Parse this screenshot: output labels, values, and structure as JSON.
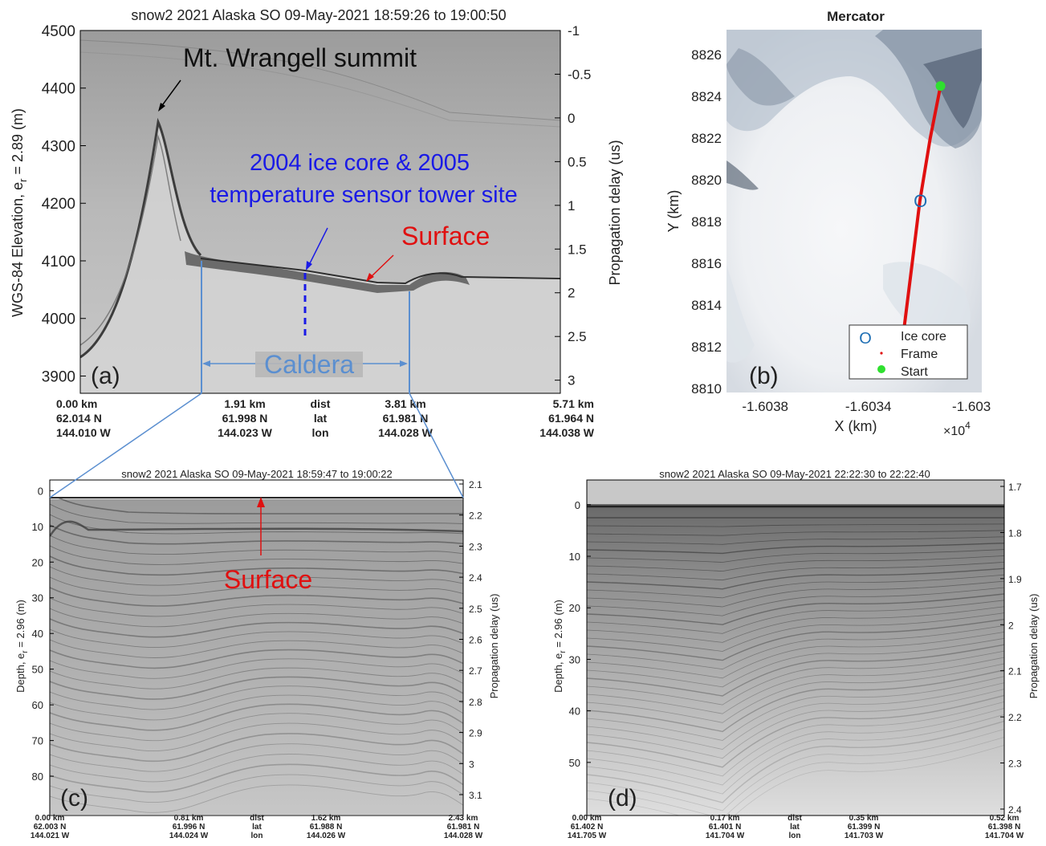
{
  "chart_data": [
    {
      "id": "a",
      "type": "heatmap",
      "title": "snow2 2021 Alaska SO 09-May-2021 18:59:26 to 19:00:50",
      "panel_label": "(a)",
      "ylabel": "WGS-84 Elevation, e_r = 2.89 (m)",
      "ylabel_main": "WGS-84 Elevation, e",
      "ylabel_sub": "r",
      "ylabel_tail": " = 2.89 (m)",
      "y2label": "Propagation delay (us)",
      "ylim": [
        3870,
        4500
      ],
      "yticks": [
        "3900",
        "4000",
        "4100",
        "4200",
        "4300",
        "4400",
        "4500"
      ],
      "y2lim": [
        3.15,
        -1.0
      ],
      "y2ticks": [
        "3",
        "2.5",
        "2",
        "1.5",
        "1",
        "0.5",
        "0",
        "-0.5",
        "-1"
      ],
      "xticks": [
        {
          "dist": "0.00 km",
          "lat": "62.014 N",
          "lon": "144.010 W"
        },
        {
          "dist": "1.91 km",
          "lat": "61.998 N",
          "lon": "144.023 W"
        },
        {
          "dist": "dist",
          "lat": "lat",
          "lon": "lon"
        },
        {
          "dist": "3.81 km",
          "lat": "61.981 N",
          "lon": "144.028 W"
        },
        {
          "dist": "5.71 km",
          "lat": "61.964 N",
          "lon": "144.038 W"
        }
      ],
      "annotations": {
        "summit": "Mt. Wrangell summit",
        "site_line1": "2004 ice core & 2005",
        "site_line2": "temperature sensor tower site",
        "surface": "Surface",
        "caldera": "Caldera"
      }
    },
    {
      "id": "b",
      "type": "scatter",
      "title": "Mercator",
      "panel_label": "(b)",
      "xlabel": "X (km)",
      "ylabel": "Y (km)",
      "x_multiplier": "×10",
      "x_multiplier_exp": "4",
      "xticks": [
        "-1.6038",
        "-1.6034",
        "-1.603"
      ],
      "yticks": [
        "8810",
        "8812",
        "8814",
        "8816",
        "8818",
        "8820",
        "8822",
        "8824",
        "8826"
      ],
      "ylim": [
        8810,
        8827
      ],
      "legend_position": "bottom-right",
      "legend": [
        "Ice core",
        "Frame",
        "Start"
      ],
      "series": [
        {
          "name": "Frame",
          "x": [
            -16032.6,
            -16032.3,
            -16032.0,
            -16031.6,
            -16031.2
          ],
          "y": [
            8813.0,
            8816.0,
            8819.0,
            8822.0,
            8824.5
          ]
        },
        {
          "name": "Ice core",
          "x": [
            -16032.1
          ],
          "y": [
            8819.0
          ]
        },
        {
          "name": "Start",
          "x": [
            -16031.2
          ],
          "y": [
            8824.5
          ]
        }
      ]
    },
    {
      "id": "c",
      "type": "heatmap",
      "title": "snow2 2021 Alaska SO 09-May-2021 18:59:47 to 19:00:22",
      "panel_label": "(c)",
      "ylabel_main": "Depth, e",
      "ylabel_sub": "r",
      "ylabel_tail": " = 2.96 (m)",
      "y2label": "Propagation delay (us)",
      "ylim": [
        0,
        90
      ],
      "yticks": [
        "0",
        "10",
        "20",
        "30",
        "40",
        "50",
        "60",
        "70",
        "80"
      ],
      "y2ticks": [
        "2.1",
        "2.2",
        "2.3",
        "2.4",
        "2.5",
        "2.6",
        "2.7",
        "2.8",
        "2.9",
        "3",
        "3.1"
      ],
      "xticks": [
        {
          "dist": "0.00 km",
          "lat": "62.003 N",
          "lon": "144.021 W"
        },
        {
          "dist": "0.81 km",
          "lat": "61.996 N",
          "lon": "144.024 W"
        },
        {
          "dist": "dist",
          "lat": "lat",
          "lon": "lon"
        },
        {
          "dist": "1.62 km",
          "lat": "61.988 N",
          "lon": "144.026 W"
        },
        {
          "dist": "2.43 km",
          "lat": "61.981 N",
          "lon": "144.028 W"
        }
      ],
      "annotations": {
        "surface": "Surface"
      }
    },
    {
      "id": "d",
      "type": "heatmap",
      "title": "snow2 2021 Alaska SO 09-May-2021 22:22:30 to 22:22:40",
      "panel_label": "(d)",
      "ylabel_main": "Depth, e",
      "ylabel_sub": "r",
      "ylabel_tail": " = 2.96 (m)",
      "y2label": "Propagation delay (us)",
      "ylim": [
        0,
        58
      ],
      "yticks": [
        "0",
        "10",
        "20",
        "30",
        "40",
        "50"
      ],
      "y2ticks": [
        "1.7",
        "1.8",
        "1.9",
        "2",
        "2.1",
        "2.2",
        "2.3",
        "2.4"
      ],
      "xticks": [
        {
          "dist": "0.00 km",
          "lat": "61.402 N",
          "lon": "141.705 W"
        },
        {
          "dist": "0.17 km",
          "lat": "61.401 N",
          "lon": "141.704 W"
        },
        {
          "dist": "dist",
          "lat": "lat",
          "lon": "lon"
        },
        {
          "dist": "0.35 km",
          "lat": "61.399 N",
          "lon": "141.703 W"
        },
        {
          "dist": "0.52 km",
          "lat": "61.398 N",
          "lon": "141.704 W"
        }
      ]
    }
  ]
}
